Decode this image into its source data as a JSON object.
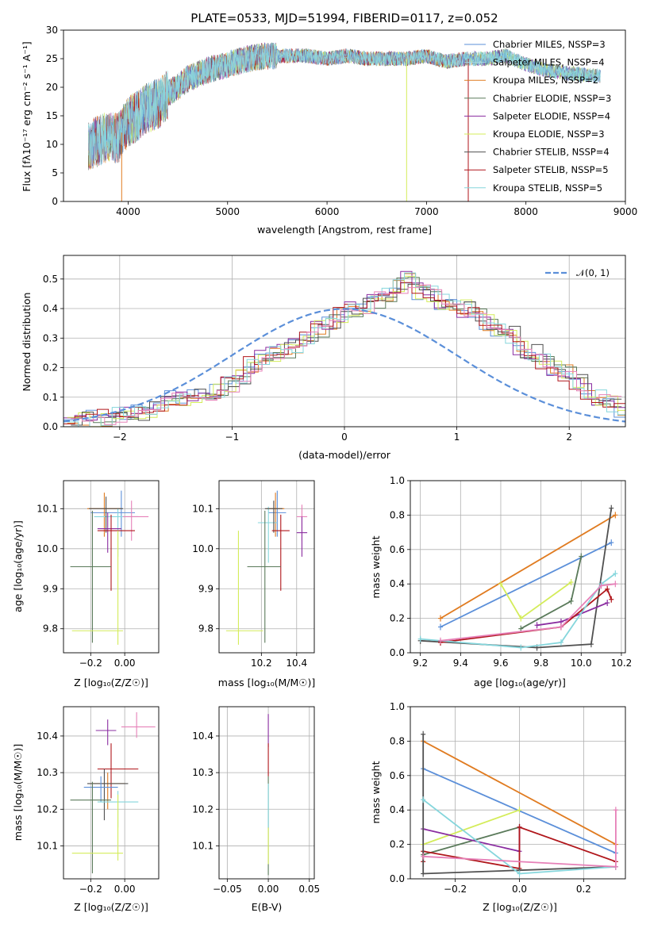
{
  "colors": {
    "chabrier_miles": "#5b8fd9",
    "salpeter_miles": "#a6d8e0",
    "kroupa_miles": "#e07b20",
    "chabrier_elodie": "#5a7a5a",
    "salpeter_elodie": "#8a2ca0",
    "kroupa_elodie": "#d4ec5a",
    "chabrier_stelib": "#505050",
    "salpeter_stelib": "#b0161b",
    "kroupa_stelib": "#85d6dc",
    "pink": "#e680b8",
    "gauss": "#5b8fd9"
  },
  "chart_data": [
    {
      "id": "spectrum",
      "type": "line",
      "title": "PLATE=0533, MJD=51994, FIBERID=0117, z=0.052",
      "xlabel": "wavelength [Angstrom, rest frame]",
      "ylabel": "Flux [fλ10⁻¹⁷ erg cm⁻² s⁻¹ A⁻¹]",
      "xlim": [
        3350,
        9000
      ],
      "ylim": [
        0,
        30
      ],
      "xticks": [
        "4000",
        "5000",
        "6000",
        "7000",
        "8000",
        "9000"
      ],
      "yticks": [
        "0",
        "5",
        "10",
        "15",
        "20",
        "25",
        "30"
      ],
      "grid": false,
      "legend_position": "top-right",
      "legend": [
        "Chabrier MILES, NSSP=3",
        "Salpeter MILES, NSSP=4",
        "Kroupa MILES, NSSP=2",
        "Chabrier ELODIE, NSSP=3",
        "Salpeter ELODIE, NSSP=4",
        "Kroupa ELODIE, NSSP=3",
        "Chabrier STELIB, NSSP=4",
        "Salpeter STELIB, NSSP=5",
        "Kroupa STELIB, NSSP=5"
      ],
      "continuum": {
        "x": [
          3600,
          3700,
          3800,
          3900,
          4000,
          4100,
          4200,
          4300,
          4400,
          4500,
          4600,
          4800,
          5000,
          5200,
          5400,
          5600,
          5800,
          6000,
          6200,
          6400,
          6600,
          6800,
          7000,
          7200,
          7400,
          7600,
          7800,
          8000,
          8200,
          8400,
          8700
        ],
        "y": [
          10,
          10.5,
          11.5,
          11,
          14,
          15,
          16.5,
          17,
          19,
          20,
          21.5,
          23,
          24,
          25,
          25.5,
          25.5,
          25.5,
          25,
          25.5,
          25,
          25,
          25,
          25.5,
          24.5,
          25,
          25,
          25.5,
          24,
          23,
          22.5,
          22
        ]
      },
      "absorption_dips": [
        {
          "x": 3935,
          "y": 0
        },
        {
          "x": 6800,
          "y": 0
        },
        {
          "x": 7420,
          "y": 0
        }
      ]
    },
    {
      "id": "residuals",
      "type": "histogram",
      "xlabel": "(data-model)/error",
      "ylabel": "Normed distribution",
      "xlim": [
        -2.5,
        2.5
      ],
      "ylim": [
        0,
        0.58
      ],
      "xticks": [
        "−2",
        "−1",
        "0",
        "1",
        "2"
      ],
      "yticks": [
        "0.0",
        "0.1",
        "0.2",
        "0.3",
        "0.4",
        "0.5"
      ],
      "grid": true,
      "legend_position": "top-right",
      "legend": [
        "𝒩(0, 1)"
      ],
      "bin_edges_start": -2.5,
      "bin_width": 0.1,
      "bin_heights": [
        0.02,
        0.02,
        0.03,
        0.03,
        0.04,
        0.05,
        0.05,
        0.06,
        0.08,
        0.1,
        0.09,
        0.1,
        0.11,
        0.12,
        0.14,
        0.17,
        0.21,
        0.24,
        0.25,
        0.26,
        0.28,
        0.3,
        0.33,
        0.35,
        0.38,
        0.4,
        0.41,
        0.43,
        0.45,
        0.48,
        0.5,
        0.46,
        0.45,
        0.42,
        0.41,
        0.4,
        0.38,
        0.35,
        0.33,
        0.31,
        0.26,
        0.25,
        0.22,
        0.2,
        0.18,
        0.15,
        0.12,
        0.1,
        0.08,
        0.06,
        0.05,
        0.05,
        0.04,
        0.03,
        0.03,
        0.02
      ]
    },
    {
      "id": "age_vs_z",
      "type": "scatter",
      "xlabel": "Z [log₁₀(Z/Z☉)]",
      "ylabel": "age  [log₁₀(age/yr)]",
      "xlim": [
        -0.36,
        0.2
      ],
      "ylim": [
        9.74,
        10.17
      ],
      "xticks": [
        "−0.2",
        "0.00"
      ],
      "yticks": [
        "9.8",
        "9.9",
        "10.0",
        "10.1"
      ],
      "grid": true
    },
    {
      "id": "age_vs_mass",
      "type": "scatter",
      "xlabel": "mass [log₁₀(M/M☉)]",
      "ylabel": "",
      "xlim": [
        9.96,
        10.5
      ],
      "ylim": [
        9.74,
        10.17
      ],
      "xticks": [
        "10.2",
        "10.4"
      ],
      "yticks": [
        "9.8",
        "9.9",
        "10.0",
        "10.1"
      ],
      "grid": true
    },
    {
      "id": "mass_weight_vs_age",
      "type": "line",
      "xlabel": "age  [log₁₀(age/yr)]",
      "ylabel": "mass weight",
      "xlim": [
        9.15,
        10.22
      ],
      "ylim": [
        0,
        1.0
      ],
      "xticks": [
        "9.2",
        "9.4",
        "9.6",
        "9.8",
        "10.0",
        "10.2"
      ],
      "yticks": [
        "0.0",
        "0.2",
        "0.4",
        "0.6",
        "0.8",
        "1.0"
      ],
      "grid": true,
      "series": [
        {
          "key": "kroupa_miles",
          "x": [
            9.3,
            10.17
          ],
          "y": [
            0.2,
            0.8
          ]
        },
        {
          "key": "chabrier_miles",
          "x": [
            9.3,
            10.15
          ],
          "y": [
            0.15,
            0.64
          ]
        },
        {
          "key": "kroupa_elodie",
          "x": [
            9.6,
            9.7,
            9.95
          ],
          "y": [
            0.4,
            0.2,
            0.41
          ]
        },
        {
          "key": "chabrier_elodie",
          "x": [
            9.7,
            9.95,
            10.0
          ],
          "y": [
            0.14,
            0.3,
            0.56
          ]
        },
        {
          "key": "chabrier_stelib",
          "x": [
            9.2,
            9.78,
            10.05,
            10.15
          ],
          "y": [
            0.07,
            0.03,
            0.05,
            0.84
          ]
        },
        {
          "key": "salpeter_elodie",
          "x": [
            9.78,
            9.9,
            10.13
          ],
          "y": [
            0.16,
            0.18,
            0.29
          ]
        },
        {
          "key": "salpeter_stelib",
          "x": [
            9.3,
            9.9,
            10.13,
            10.15
          ],
          "y": [
            0.06,
            0.15,
            0.37,
            0.31
          ]
        },
        {
          "key": "kroupa_stelib",
          "x": [
            9.2,
            9.7,
            9.9,
            10.1,
            10.17
          ],
          "y": [
            0.08,
            0.03,
            0.06,
            0.4,
            0.46
          ]
        },
        {
          "key": "pink",
          "x": [
            9.3,
            9.9,
            10.1,
            10.17
          ],
          "y": [
            0.07,
            0.15,
            0.39,
            0.4
          ]
        }
      ]
    },
    {
      "id": "mass_vs_z",
      "type": "scatter",
      "xlabel": "Z [log₁₀(Z/Z☉)]",
      "ylabel": "mass [log₁₀(M/M☉)]",
      "xlim": [
        -0.36,
        0.2
      ],
      "ylim": [
        10.01,
        10.48
      ],
      "xticks": [
        "−0.2",
        "0.00"
      ],
      "yticks": [
        "10.1",
        "10.2",
        "10.3",
        "10.4"
      ],
      "grid": true
    },
    {
      "id": "mass_vs_ebv",
      "type": "scatter",
      "xlabel": "E(B-V)",
      "ylabel": "",
      "xlim": [
        -0.06,
        0.056
      ],
      "ylim": [
        10.01,
        10.48
      ],
      "xticks": [
        "−0.05",
        "0.00",
        "0.05"
      ],
      "yticks": [
        "10.1",
        "10.2",
        "10.3",
        "10.4"
      ],
      "grid": true
    },
    {
      "id": "mass_weight_vs_z",
      "type": "line",
      "xlabel": "Z [log₁₀(Z/Z☉)]",
      "ylabel": "mass weight",
      "xlim": [
        -0.34,
        0.33
      ],
      "ylim": [
        0,
        1.0
      ],
      "xticks": [
        "−0.2",
        "0.0",
        "0.2"
      ],
      "yticks": [
        "0.0",
        "0.2",
        "0.4",
        "0.6",
        "0.8",
        "1.0"
      ],
      "grid": true,
      "series": [
        {
          "key": "kroupa_miles",
          "x": [
            -0.3,
            0.3
          ],
          "y": [
            0.8,
            0.2
          ]
        },
        {
          "key": "chabrier_miles",
          "x": [
            -0.3,
            0.3
          ],
          "y": [
            0.64,
            0.15
          ]
        },
        {
          "key": "kroupa_elodie",
          "x": [
            -0.3,
            0.0
          ],
          "y": [
            0.2,
            0.4
          ]
        },
        {
          "key": "chabrier_elodie",
          "x": [
            -0.3,
            0.0
          ],
          "y": [
            0.14,
            0.3
          ]
        },
        {
          "key": "salpeter_elodie",
          "x": [
            -0.3,
            0.0,
            0.0
          ],
          "y": [
            0.29,
            0.16,
            0.3
          ]
        },
        {
          "key": "salpeter_stelib",
          "x": [
            -0.3,
            -0.3,
            0.0,
            0.0,
            0.3
          ],
          "y": [
            0.1,
            0.16,
            0.06,
            0.3,
            0.1
          ]
        },
        {
          "key": "chabrier_stelib",
          "x": [
            -0.3,
            -0.3,
            0.0,
            0.3
          ],
          "y": [
            0.84,
            0.03,
            0.05,
            0.07
          ]
        },
        {
          "key": "kroupa_stelib",
          "x": [
            -0.3,
            0.0,
            0.3
          ],
          "y": [
            0.46,
            0.03,
            0.07
          ]
        },
        {
          "key": "pink",
          "x": [
            -0.3,
            0.3,
            0.3
          ],
          "y": [
            0.13,
            0.07,
            0.4
          ]
        }
      ]
    }
  ]
}
